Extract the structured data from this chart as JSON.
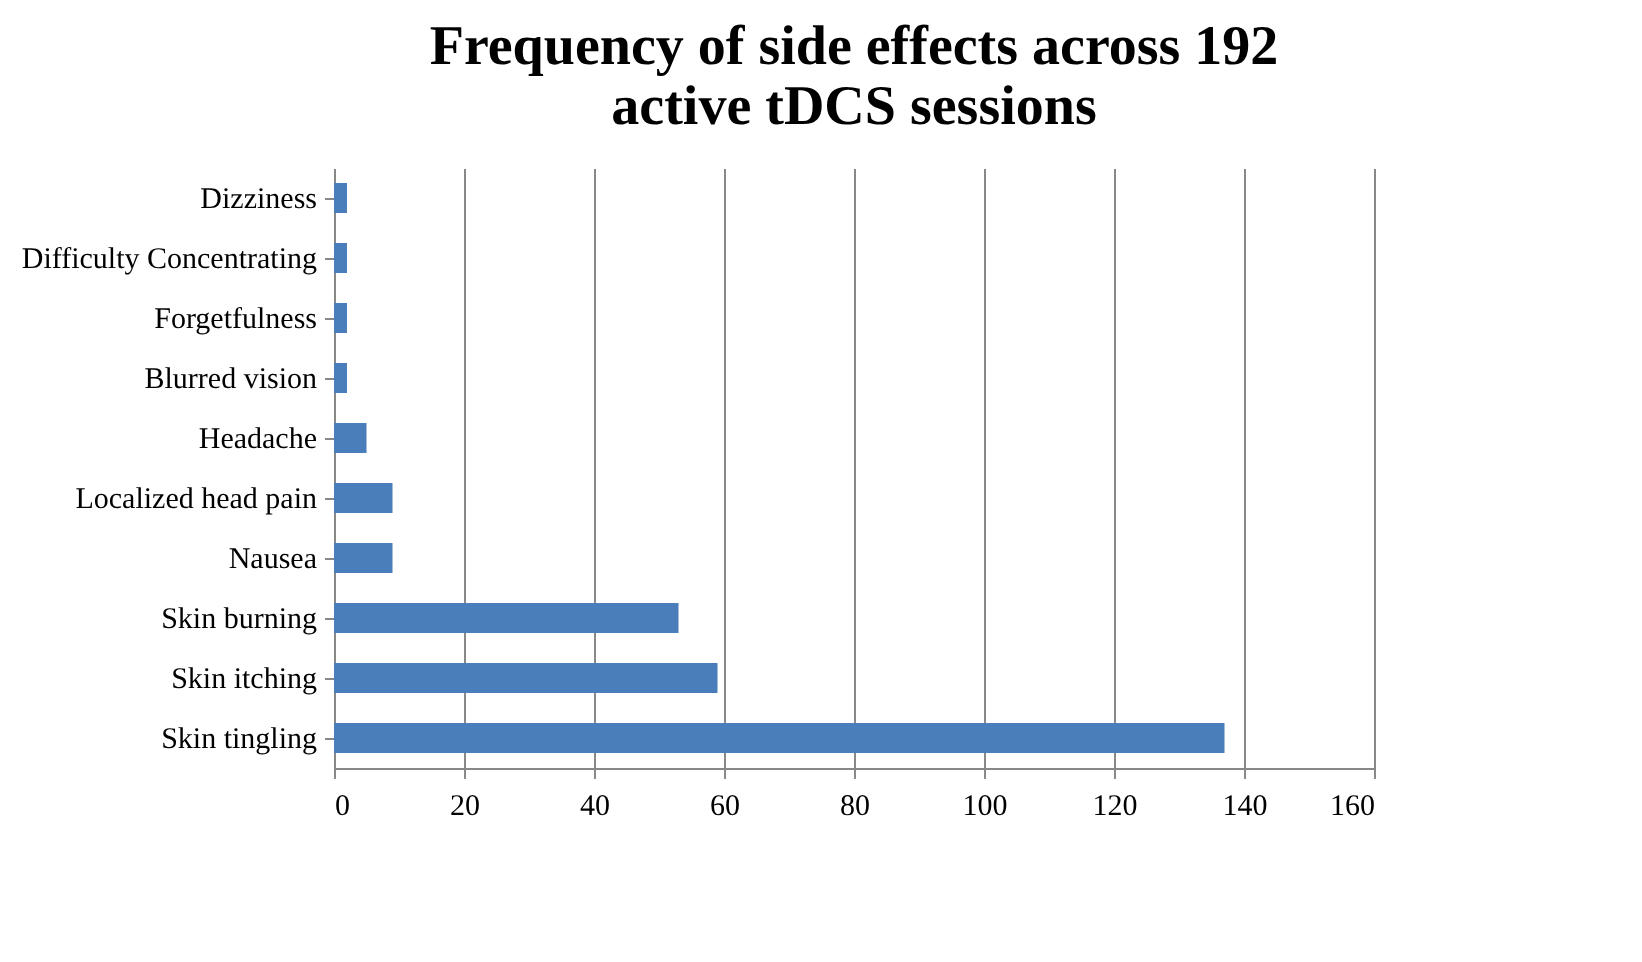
{
  "chart_data": {
    "type": "bar",
    "orientation": "horizontal",
    "title": [
      "Frequency of side effects across 192",
      "active tDCS sessions"
    ],
    "categories": [
      "Dizziness",
      "Difficulty Concentrating",
      "Forgetfulness",
      "Blurred vision",
      "Headache",
      "Localized head pain",
      "Nausea",
      "Skin burning",
      "Skin itching",
      "Skin tingling"
    ],
    "values": [
      2,
      2,
      2,
      2,
      5,
      9,
      9,
      53,
      59,
      137
    ],
    "color": "#4a7ebb",
    "xlim": [
      0,
      160
    ],
    "xticks": [
      0,
      20,
      40,
      60,
      80,
      100,
      120,
      140,
      160
    ],
    "grid": "x"
  }
}
